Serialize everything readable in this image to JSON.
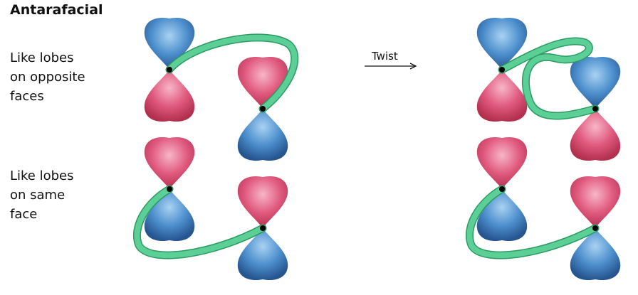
{
  "title": "Antarafacial",
  "labels": {
    "top": [
      "Like lobes",
      "on opposite",
      "faces"
    ],
    "bottom": [
      "Like lobes",
      "on same",
      "face"
    ]
  },
  "arrow_label": "Twist",
  "colors": {
    "blue": "#3f84c6",
    "pink": "#e05a7e",
    "ribbon": "#5ccf96",
    "ribbon_edge": "#2b9a63",
    "node": "#000000"
  },
  "icons": [
    "p-orbital-lobe-icon",
    "ribbon-connector-icon",
    "right-arrow-icon"
  ]
}
